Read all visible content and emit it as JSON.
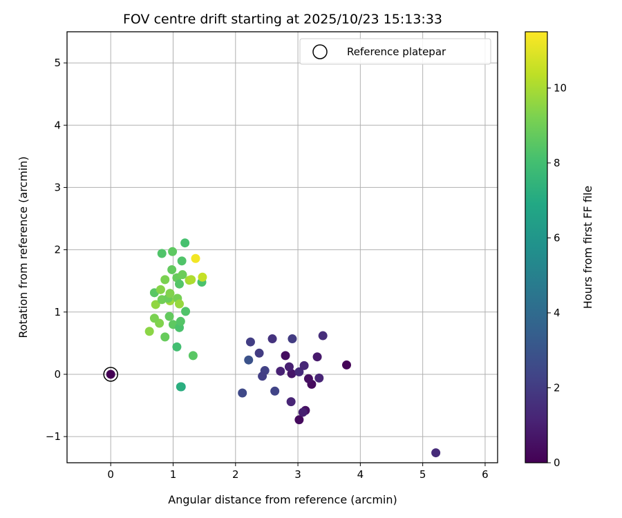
{
  "chart_data": {
    "type": "scatter",
    "title": "FOV centre drift starting at 2025/10/23 15:13:33",
    "xlabel": "Angular distance from reference (arcmin)",
    "ylabel": "Rotation from reference (arcmin)",
    "xlim": [
      -0.7,
      6.2
    ],
    "ylim": [
      -1.42,
      5.5
    ],
    "x_ticks": [
      0,
      1,
      2,
      3,
      4,
      5,
      6
    ],
    "y_ticks": [
      -1,
      0,
      1,
      2,
      3,
      4,
      5
    ],
    "grid": true,
    "legend": {
      "position": "top-right",
      "label": "Reference platepar"
    },
    "colorbar": {
      "label": "Hours from first FF file",
      "colormap": "viridis",
      "range": [
        0,
        11.5
      ],
      "ticks": [
        0,
        2,
        4,
        6,
        8,
        10
      ]
    },
    "reference_point": {
      "x": 0,
      "y": 0,
      "t": 0
    },
    "points": [
      {
        "x": 3.02,
        "y": -0.73,
        "t": 0.3
      },
      {
        "x": 3.12,
        "y": -0.58,
        "t": 0.5
      },
      {
        "x": 3.08,
        "y": -0.61,
        "t": 1.0
      },
      {
        "x": 2.89,
        "y": -0.44,
        "t": 1.2
      },
      {
        "x": 3.78,
        "y": 0.15,
        "t": 0.1
      },
      {
        "x": 3.22,
        "y": -0.16,
        "t": 0.3
      },
      {
        "x": 3.17,
        "y": -0.07,
        "t": 0.5
      },
      {
        "x": 3.34,
        "y": -0.06,
        "t": 1.2
      },
      {
        "x": 2.9,
        "y": 0.01,
        "t": 0.7
      },
      {
        "x": 3.02,
        "y": 0.04,
        "t": 1.4
      },
      {
        "x": 3.1,
        "y": 0.14,
        "t": 1.3
      },
      {
        "x": 3.31,
        "y": 0.28,
        "t": 0.8
      },
      {
        "x": 2.8,
        "y": 0.3,
        "t": 0.4
      },
      {
        "x": 2.86,
        "y": 0.12,
        "t": 1.0
      },
      {
        "x": 2.72,
        "y": 0.05,
        "t": 1.1
      },
      {
        "x": 2.91,
        "y": 0.57,
        "t": 2.0
      },
      {
        "x": 3.4,
        "y": 0.62,
        "t": 1.5
      },
      {
        "x": 2.59,
        "y": 0.57,
        "t": 1.7
      },
      {
        "x": 2.24,
        "y": 0.52,
        "t": 2.1
      },
      {
        "x": 2.38,
        "y": 0.34,
        "t": 2.0
      },
      {
        "x": 2.21,
        "y": 0.23,
        "t": 2.9
      },
      {
        "x": 2.47,
        "y": 0.06,
        "t": 2.2
      },
      {
        "x": 2.43,
        "y": -0.03,
        "t": 2.1
      },
      {
        "x": 2.63,
        "y": -0.27,
        "t": 2.3
      },
      {
        "x": 2.11,
        "y": -0.3,
        "t": 2.5
      },
      {
        "x": 5.21,
        "y": -1.26,
        "t": 1.4
      },
      {
        "x": 1.13,
        "y": -0.2,
        "t": 6.8
      },
      {
        "x": 1.12,
        "y": -0.2,
        "t": 7.2
      },
      {
        "x": 1.32,
        "y": 0.3,
        "t": 8.5
      },
      {
        "x": 1.06,
        "y": 0.44,
        "t": 8.0
      },
      {
        "x": 0.87,
        "y": 0.6,
        "t": 8.8
      },
      {
        "x": 0.62,
        "y": 0.69,
        "t": 9.5
      },
      {
        "x": 0.78,
        "y": 0.82,
        "t": 9.3
      },
      {
        "x": 0.7,
        "y": 0.9,
        "t": 9.2
      },
      {
        "x": 0.94,
        "y": 0.93,
        "t": 8.7
      },
      {
        "x": 1.0,
        "y": 0.8,
        "t": 8.6
      },
      {
        "x": 1.1,
        "y": 0.75,
        "t": 8.2
      },
      {
        "x": 1.12,
        "y": 0.85,
        "t": 8.4
      },
      {
        "x": 1.2,
        "y": 1.01,
        "t": 8.3
      },
      {
        "x": 0.72,
        "y": 1.12,
        "t": 9.6
      },
      {
        "x": 0.82,
        "y": 1.2,
        "t": 9.0
      },
      {
        "x": 0.95,
        "y": 1.18,
        "t": 9.8
      },
      {
        "x": 1.07,
        "y": 1.22,
        "t": 9.1
      },
      {
        "x": 1.1,
        "y": 1.13,
        "t": 9.7
      },
      {
        "x": 0.92,
        "y": 1.22,
        "t": 8.9
      },
      {
        "x": 0.7,
        "y": 1.31,
        "t": 8.5
      },
      {
        "x": 0.8,
        "y": 1.36,
        "t": 9.4
      },
      {
        "x": 0.95,
        "y": 1.3,
        "t": 9.3
      },
      {
        "x": 0.87,
        "y": 1.52,
        "t": 9.2
      },
      {
        "x": 0.98,
        "y": 1.68,
        "t": 8.7
      },
      {
        "x": 1.06,
        "y": 1.55,
        "t": 8.8
      },
      {
        "x": 1.1,
        "y": 1.45,
        "t": 8.4
      },
      {
        "x": 1.15,
        "y": 1.6,
        "t": 8.9
      },
      {
        "x": 1.26,
        "y": 1.51,
        "t": 9.9
      },
      {
        "x": 1.29,
        "y": 1.52,
        "t": 10.1
      },
      {
        "x": 1.46,
        "y": 1.48,
        "t": 8.2
      },
      {
        "x": 1.47,
        "y": 1.56,
        "t": 10.5
      },
      {
        "x": 1.36,
        "y": 1.86,
        "t": 11.3
      },
      {
        "x": 1.14,
        "y": 1.82,
        "t": 8.3
      },
      {
        "x": 0.82,
        "y": 1.94,
        "t": 8.3
      },
      {
        "x": 0.99,
        "y": 1.97,
        "t": 8.6
      },
      {
        "x": 1.19,
        "y": 2.11,
        "t": 8.1
      },
      {
        "x": 0.0,
        "y": 0.0,
        "t": 0.0
      }
    ]
  }
}
